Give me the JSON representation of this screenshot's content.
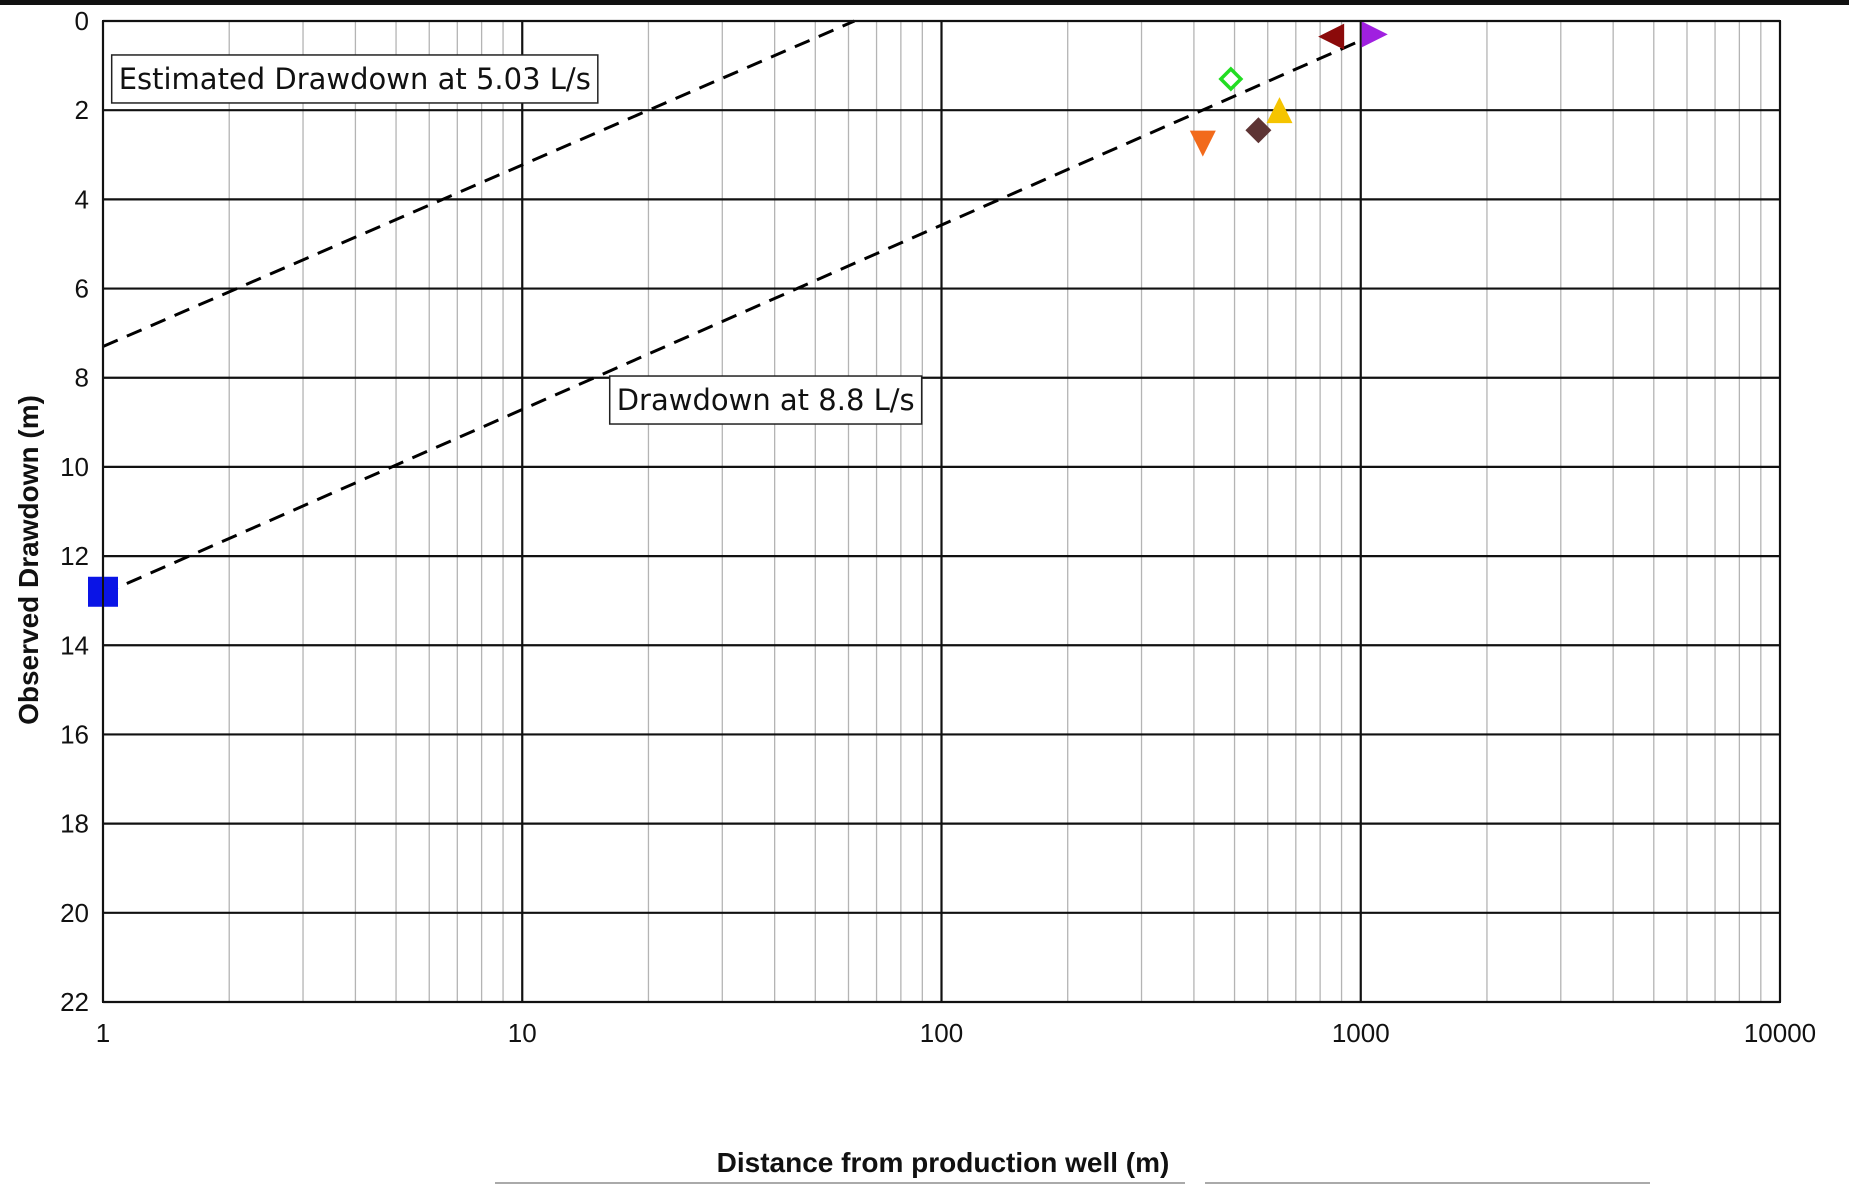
{
  "chart_data": {
    "type": "scatter",
    "x_scale": "log",
    "xlabel": "Distance from production well (m)",
    "ylabel": "Observed Drawdown (m)",
    "xlim": [
      1,
      10000
    ],
    "ylim": [
      0,
      22
    ],
    "y_inverted": true,
    "grid": true,
    "x_ticks": [
      1,
      10,
      100,
      1000,
      10000
    ],
    "x_tick_labels": [
      "1",
      "10",
      "100",
      "1000",
      "10000"
    ],
    "y_ticks": [
      0,
      2,
      4,
      6,
      8,
      10,
      12,
      14,
      16,
      18,
      20,
      22
    ],
    "y_tick_labels": [
      "0",
      "2",
      "4",
      "6",
      "8",
      "10",
      "12",
      "14",
      "16",
      "18",
      "20",
      "22"
    ],
    "points": [
      {
        "x": 1.0,
        "y": 12.8,
        "marker": "square",
        "color": "#0a14e6"
      },
      {
        "x": 420,
        "y": 2.75,
        "marker": "triangle-down",
        "color": "#f26a1b"
      },
      {
        "x": 490,
        "y": 1.3,
        "marker": "diamond-open",
        "color": "#22dd22"
      },
      {
        "x": 570,
        "y": 2.45,
        "marker": "diamond",
        "color": "#5e3434"
      },
      {
        "x": 640,
        "y": 2.0,
        "marker": "triangle-up",
        "color": "#f5c400"
      },
      {
        "x": 850,
        "y": 0.35,
        "marker": "triangle-left",
        "color": "#8b0a0a"
      },
      {
        "x": 1080,
        "y": 0.3,
        "marker": "triangle-right",
        "color": "#a020e0"
      }
    ],
    "lines": [
      {
        "x": [
          1,
          62
        ],
        "y": [
          7.3,
          0.0
        ],
        "style": "dashed",
        "color": "#000000"
      },
      {
        "x": [
          1,
          1080
        ],
        "y": [
          12.85,
          0.3
        ],
        "style": "dashed",
        "color": "#000000"
      }
    ],
    "annotations": [
      {
        "text": "Estimated Drawdown at 5.03 L/s",
        "x": 1.09,
        "y": 1.3
      },
      {
        "text": "Drawdown at 8.8 L/s",
        "x": 16.8,
        "y": 8.5
      }
    ]
  }
}
